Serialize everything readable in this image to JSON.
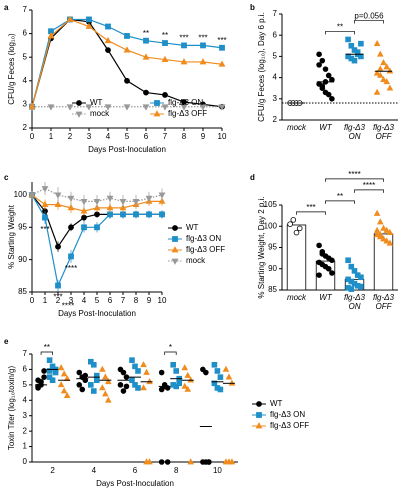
{
  "chart_data": [
    {
      "panel_label": "a",
      "type": "line",
      "xlabel": "Days Post-Inoculation",
      "ylabel": "CFU/g Feces (log₁₀)",
      "x": [
        0,
        1,
        2,
        3,
        4,
        5,
        6,
        7,
        8,
        9,
        10
      ],
      "xlim": [
        0,
        10
      ],
      "xticks": [
        0,
        1,
        2,
        3,
        4,
        5,
        6,
        7,
        8,
        9,
        10
      ],
      "ylim": [
        2,
        7
      ],
      "yticks": [
        2,
        3,
        4,
        5,
        6,
        7
      ],
      "legend_columns": 2,
      "series": [
        {
          "name": "WT",
          "color": "#000000",
          "marker": "circle",
          "dash": "solid",
          "values": [
            2.9,
            5.8,
            6.6,
            6.5,
            5.3,
            4.0,
            3.5,
            3.4,
            3.1,
            3.0,
            2.9
          ]
        },
        {
          "name": "flg-Δ3 ON",
          "color": "#1f8fc8",
          "marker": "square",
          "dash": "solid",
          "values": [
            2.9,
            6.1,
            6.6,
            6.6,
            6.3,
            5.9,
            5.7,
            5.6,
            5.5,
            5.5,
            5.4
          ]
        },
        {
          "name": "mock",
          "color": "#999999",
          "marker": "triangle-down",
          "dash": "dotted",
          "values": [
            2.9,
            2.9,
            2.9,
            2.9,
            2.9,
            2.9,
            2.9,
            2.9,
            2.9,
            2.9,
            2.9
          ]
        },
        {
          "name": "flg-Δ3 OFF",
          "color": "#f08c1e",
          "marker": "triangle",
          "dash": "solid",
          "values": [
            2.9,
            5.9,
            6.6,
            6.3,
            5.7,
            5.3,
            5.0,
            4.9,
            4.8,
            4.8,
            4.7
          ]
        }
      ],
      "annotations": [
        {
          "text": "**",
          "x": 6
        },
        {
          "text": "**",
          "x": 7
        },
        {
          "text": "***",
          "x": 8
        },
        {
          "text": "***",
          "x": 9
        },
        {
          "text": "***",
          "x": 10
        }
      ]
    },
    {
      "panel_label": "b",
      "type": "strip",
      "ylabel": "CFU/g Feces (log₁₀), Day 6 p.i.",
      "categories": [
        "mock",
        "WT",
        "flg-Δ3 ON",
        "flg-Δ3 OFF"
      ],
      "ylim": [
        2,
        7
      ],
      "yticks": [
        2,
        3,
        4,
        5,
        6,
        7
      ],
      "colors": [
        "#ffffff",
        "#000000",
        "#1f8fc8",
        "#f08c1e"
      ],
      "markers": [
        "circle",
        "circle",
        "square",
        "triangle"
      ],
      "detection_limit": 2.8,
      "points": [
        [
          2.8,
          2.8,
          2.8,
          2.8
        ],
        [
          5.1,
          4.8,
          4.4,
          4.1,
          3.9,
          3.7,
          3.5,
          3.3,
          3.2,
          3.0,
          4.6,
          3.6,
          3.8
        ],
        [
          5.8,
          5.5,
          5.3,
          5.1,
          5.0,
          5.0,
          4.9,
          4.8,
          5.2,
          5.6
        ],
        [
          5.6,
          5.1,
          4.7,
          4.5,
          4.3,
          4.2,
          4.1,
          3.9,
          3.8,
          3.5,
          3.3,
          4.4
        ]
      ],
      "means": [
        2.8,
        3.8,
        5.1,
        4.3
      ],
      "brackets": [
        {
          "text": "**",
          "from": "WT",
          "to": "flg-Δ3 ON"
        },
        {
          "text": "p=0.056",
          "from": "flg-Δ3 ON",
          "to": "flg-Δ3 OFF"
        }
      ]
    },
    {
      "panel_label": "c",
      "type": "line",
      "xlabel": "Days Post-Inoculation",
      "ylabel": "% Starting Weight",
      "x": [
        0,
        1,
        2,
        3,
        4,
        5,
        6,
        7,
        8,
        9,
        10
      ],
      "xlim": [
        0,
        10
      ],
      "xticks": [
        0,
        1,
        2,
        3,
        4,
        5,
        6,
        7,
        8,
        9,
        10
      ],
      "ylim": [
        85,
        102
      ],
      "yticks": [
        85,
        90,
        95,
        100
      ],
      "legend_columns": 1,
      "series": [
        {
          "name": "WT",
          "color": "#000000",
          "marker": "circle",
          "dash": "solid",
          "values": [
            100,
            97.5,
            92,
            95,
            96.5,
            97,
            97,
            97,
            97,
            97,
            97
          ],
          "errors": [
            0,
            0.8,
            0.8,
            0.6,
            0.6,
            0.5,
            0.6,
            0.6,
            0.5,
            0.5,
            0.6
          ]
        },
        {
          "name": "flg-Δ3 ON",
          "color": "#1f8fc8",
          "marker": "square",
          "dash": "solid",
          "values": [
            100,
            96.5,
            86,
            90.5,
            95,
            95,
            97,
            97,
            97,
            97,
            97
          ],
          "errors": [
            0,
            1.0,
            0.9,
            1.0,
            0.8,
            0.8,
            0.7,
            0.6,
            0.6,
            0.6,
            0.6
          ]
        },
        {
          "name": "flg-Δ3 OFF",
          "color": "#f08c1e",
          "marker": "triangle",
          "dash": "solid",
          "values": [
            100,
            98.5,
            98.5,
            98,
            97.5,
            98,
            98,
            98,
            98.5,
            99,
            99
          ],
          "errors": [
            0,
            0.8,
            0.8,
            0.8,
            0.7,
            0.7,
            0.7,
            0.7,
            0.7,
            0.7,
            0.7
          ]
        },
        {
          "name": "mock",
          "color": "#999999",
          "marker": "triangle-down",
          "dash": "dotted",
          "values": [
            100,
            101,
            100,
            99.5,
            99,
            99,
            99.5,
            99,
            99,
            99.5,
            100
          ],
          "errors": [
            0,
            1.0,
            1.2,
            1.0,
            1.0,
            1.0,
            1.0,
            1.0,
            1.0,
            1.0,
            1.0
          ]
        }
      ],
      "annotations": [
        {
          "text": "***",
          "x": 1
        },
        {
          "text": "***",
          "x": 2
        },
        {
          "text": "****",
          "x": 2
        },
        {
          "text": "****",
          "x": 3
        }
      ]
    },
    {
      "panel_label": "d",
      "type": "bar",
      "ylabel": "% Starting Weight, Day 2 p.i.",
      "categories": [
        "mock",
        "WT",
        "flg-Δ3 ON",
        "flg-Δ3 OFF"
      ],
      "ylim": [
        85,
        105
      ],
      "yticks": [
        85,
        90,
        95,
        100,
        105
      ],
      "colors": [
        "#ffffff",
        "#000000",
        "#1f8fc8",
        "#f08c1e"
      ],
      "markers": [
        "circle",
        "circle",
        "square",
        "triangle"
      ],
      "points": [
        [
          100.5,
          101.5,
          98.5,
          99.5
        ],
        [
          95.5,
          94,
          93,
          92.5,
          92,
          91.5,
          91,
          90.5,
          90,
          89,
          88.5,
          93.5
        ],
        [
          92,
          90.5,
          89.5,
          88.5,
          88,
          87.5,
          87,
          86.5,
          86,
          85.8,
          85.5,
          85.2
        ],
        [
          103,
          101,
          99.5,
          99,
          98.5,
          98,
          97.5,
          97,
          96.5,
          96,
          99,
          98
        ]
      ],
      "means": [
        100.3,
        91.8,
        87.5,
        98.2
      ],
      "brackets": [
        {
          "text": "***",
          "from": "mock",
          "to": "WT"
        },
        {
          "text": "**",
          "from": "WT",
          "to": "flg-Δ3 ON"
        },
        {
          "text": "****",
          "from": "flg-Δ3 ON",
          "to": "flg-Δ3 OFF"
        },
        {
          "text": "****",
          "from": "WT",
          "to": "flg-Δ3 OFF"
        }
      ]
    },
    {
      "panel_label": "e",
      "type": "grouped-strip",
      "xlabel": "Days Post-Inoculation",
      "ylabel": "Toxin Titer (log₁₀toxin/g)",
      "categories": [
        "2",
        "4",
        "6",
        "8",
        "10"
      ],
      "ylim": [
        0,
        7
      ],
      "yticks": [
        0,
        1,
        2,
        3,
        4,
        5,
        6,
        7
      ],
      "legend_columns": 1,
      "series": [
        {
          "name": "WT",
          "color": "#000000",
          "marker": "circle",
          "points": [
            [
              4.9,
              5.2,
              5.5,
              4.8,
              5.0,
              5.9,
              5.3
            ],
            [
              5.8,
              5.5,
              5.3,
              5.0,
              4.7,
              5.6
            ],
            [
              6.0,
              5.8,
              5.5,
              5.0,
              4.6,
              4.9
            ],
            [
              5.8,
              5.0,
              4.8,
              4.7,
              4.9,
              0,
              0
            ],
            [
              6.0,
              5.8,
              0,
              0,
              0,
              0
            ]
          ],
          "means": [
            5.0,
            5.4,
            5.3,
            4.9,
            2.3
          ]
        },
        {
          "name": "flg-Δ3 ON",
          "color": "#1f8fc8",
          "marker": "square",
          "points": [
            [
              6.6,
              6.2,
              5.8,
              5.5,
              5.3,
              6.0,
              5.9
            ],
            [
              6.5,
              6.3,
              5.6,
              5.0,
              4.6,
              5.3
            ],
            [
              6.6,
              6.2,
              5.9,
              5.3,
              5.0,
              4.8
            ],
            [
              6.3,
              5.9,
              5.4,
              5.0,
              4.9,
              5.1
            ],
            [
              6.3,
              5.9,
              5.5,
              5.1,
              4.8,
              4.7
            ]
          ],
          "means": [
            6.0,
            5.5,
            5.5,
            5.4,
            5.2
          ]
        },
        {
          "name": "flg-Δ3 OFF",
          "color": "#f08c1e",
          "marker": "triangle",
          "points": [
            [
              6.1,
              5.7,
              5.4,
              5.0,
              4.6,
              4.3
            ],
            [
              6.0,
              5.5,
              5.2,
              4.8,
              4.4,
              4.0
            ],
            [
              6.3,
              5.8,
              5.2,
              4.8,
              0,
              0
            ],
            [
              6.1,
              5.6,
              5.3,
              4.9,
              4.7,
              0
            ],
            [
              6.0,
              5.5,
              5.1,
              0,
              0,
              0
            ]
          ],
          "means": [
            5.3,
            5.3,
            5.2,
            5.3,
            5.1
          ]
        }
      ],
      "brackets": [
        {
          "text": "**",
          "category": "2"
        },
        {
          "text": "*",
          "category": "8"
        }
      ]
    }
  ]
}
